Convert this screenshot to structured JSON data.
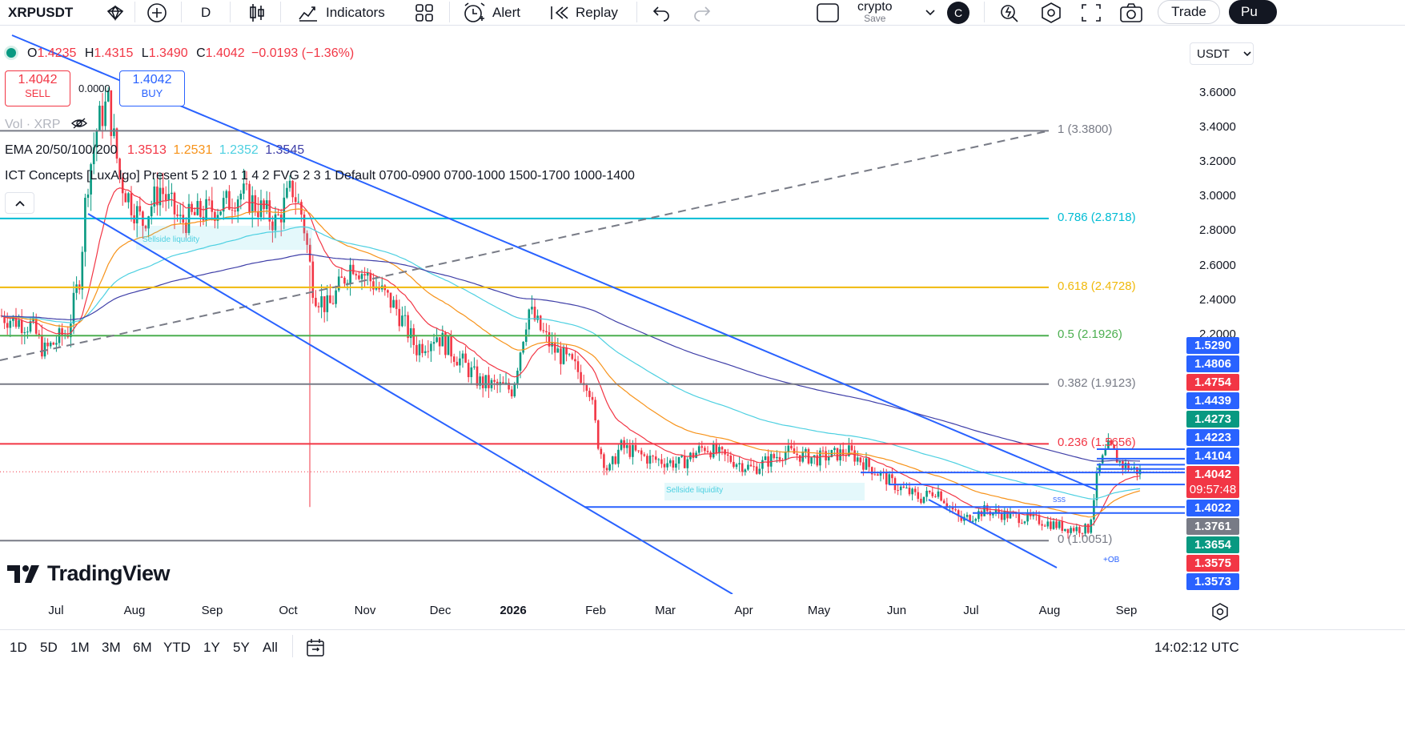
{
  "toolbar": {
    "symbol": "XRPUSDT",
    "interval": "D",
    "indicators_label": "Indicators",
    "alert_label": "Alert",
    "replay_label": "Replay",
    "layout_name": "crypto",
    "layout_save": "Save",
    "avatar_letter": "C",
    "trade_label": "Trade",
    "publish_label": "Pu"
  },
  "legend": {
    "ohlc": {
      "o_label": "O",
      "o": "1.4235",
      "h_label": "H",
      "h": "1.4315",
      "l_label": "L",
      "l": "1.3490",
      "c_label": "C",
      "c": "1.4042",
      "change": "−0.0193 (−1.36%)"
    },
    "sell": {
      "price": "1.4042",
      "label": "SELL"
    },
    "spread": "0.0000",
    "buy": {
      "price": "1.4042",
      "label": "BUY"
    },
    "vol": "Vol · XRP",
    "ema": {
      "name": "EMA 20/50/100/200",
      "v1": "1.3513",
      "v2": "1.2531",
      "v3": "1.2352",
      "v4": "1.3545"
    },
    "ict": "ICT Concepts [LuxAlgo] Present 5 2 10 1 1 4 2 FVG 2 3 1 Default 0700-0900 0700-1000 1500-1700 1000-1400"
  },
  "fib_levels": [
    {
      "ratio": "1 (3.3800)",
      "price": 3.38,
      "color": "#787b86"
    },
    {
      "ratio": "0.786 (2.8718)",
      "price": 2.8718,
      "color": "#00bcd4"
    },
    {
      "ratio": "0.618 (2.4728)",
      "price": 2.4728,
      "color": "#f0b90b"
    },
    {
      "ratio": "0.5 (2.1926)",
      "price": 2.1926,
      "color": "#4caf50"
    },
    {
      "ratio": "0.382 (1.9123)",
      "price": 1.9123,
      "color": "#787b86"
    },
    {
      "ratio": "0.236 (1.5656)",
      "price": 1.5656,
      "color": "#f23645"
    },
    {
      "ratio": "0 (1.0051)",
      "price": 1.0051,
      "color": "#787b86"
    }
  ],
  "annotations": {
    "sellside1": "Sellside liquidity",
    "sellside2": "Sellside liquidity",
    "ob": "+OB",
    "sss": "SSS"
  },
  "price_axis": {
    "currency": "USDT",
    "ticks": [
      "3.6000",
      "3.4000",
      "3.2000",
      "3.0000",
      "2.8000",
      "2.6000",
      "2.4000",
      "2.2000"
    ],
    "labels": [
      {
        "text": "1.5290",
        "color": "#2962ff"
      },
      {
        "text": "1.4806",
        "color": "#2962ff"
      },
      {
        "text": "1.4754",
        "color": "#f23645"
      },
      {
        "text": "1.4439",
        "color": "#2962ff"
      },
      {
        "text": "1.4273",
        "color": "#089981"
      },
      {
        "text": "1.4223",
        "color": "#2962ff"
      },
      {
        "text": "1.4104",
        "color": "#2962ff"
      },
      {
        "text": "1.4042",
        "color": "#f23645"
      },
      {
        "text": "09:57:48",
        "color": "#f23645"
      },
      {
        "text": "1.4022",
        "color": "#2962ff"
      },
      {
        "text": "1.3761",
        "color": "#787b86"
      },
      {
        "text": "1.3654",
        "color": "#089981"
      },
      {
        "text": "1.3575",
        "color": "#f23645"
      },
      {
        "text": "1.3573",
        "color": "#2962ff"
      }
    ]
  },
  "time_axis": [
    "Jul",
    "Aug",
    "Sep",
    "Oct",
    "Nov",
    "Dec",
    "2026",
    "Feb",
    "Mar",
    "Apr",
    "May",
    "Jun",
    "Jul",
    "Aug",
    "Sep"
  ],
  "bottom": {
    "ranges": [
      "1D",
      "5D",
      "1M",
      "3M",
      "6M",
      "YTD",
      "1Y",
      "5Y",
      "All"
    ],
    "clock": "14:02:12 UTC"
  },
  "watermark": "TradingView",
  "colors": {
    "up": "#089981",
    "down": "#f23645",
    "channel": "#2962ff",
    "ema20": "#f23645",
    "ema50": "#f7931a",
    "ema100": "#4dd0e1",
    "ema200": "#3f3fa8"
  }
}
